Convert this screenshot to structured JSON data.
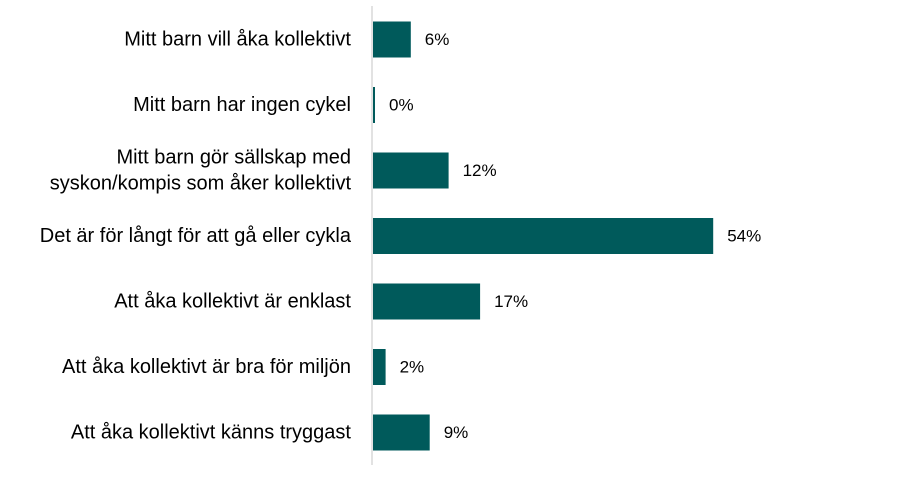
{
  "chart_data": {
    "type": "bar",
    "orientation": "horizontal",
    "categories": [
      "Mitt barn vill åka kollektivt",
      "Mitt barn har ingen cykel",
      "Mitt barn gör sällskap med syskon/kompis som åker kollektivt",
      "Det är för långt för att gå eller cykla",
      "Att åka kollektivt är enklast",
      "Att åka kollektivt är bra för miljön",
      "Att åka kollektivt känns tryggast"
    ],
    "values": [
      6,
      0,
      12,
      54,
      17,
      2,
      9
    ],
    "value_labels": [
      "6%",
      "0%",
      "12%",
      "54%",
      "17%",
      "2%",
      "9%"
    ],
    "unit": "%",
    "xlim": [
      0,
      100
    ],
    "grid": false,
    "legend": "none",
    "bar_color": "#005a5b",
    "axis_color": "#d9d9d9"
  }
}
